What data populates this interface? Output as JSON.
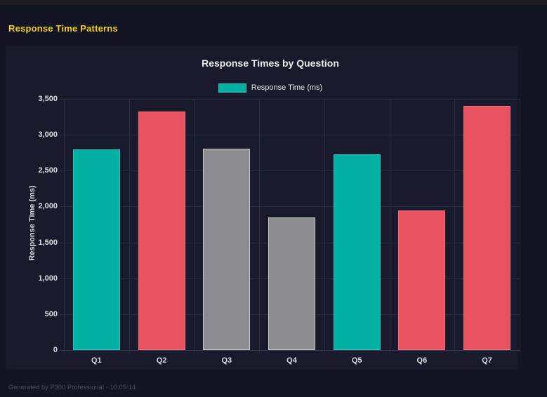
{
  "header": {
    "title": "Response Time Patterns"
  },
  "footer": {
    "text": "Generated by P300 Professional - 10:05:14"
  },
  "chart_data": {
    "type": "bar",
    "title": "Response Times by Question",
    "categories": [
      "Q1",
      "Q2",
      "Q3",
      "Q4",
      "Q5",
      "Q6",
      "Q7"
    ],
    "values": [
      2800,
      3320,
      2810,
      1850,
      2730,
      1950,
      3400
    ],
    "bar_colors": [
      "#02b1a3",
      "#e85261",
      "#8b8b90",
      "#8b8b90",
      "#02b1a3",
      "#e85261",
      "#e85261"
    ],
    "bar_border_colors": [
      "#2cc7b9",
      "#f0707d",
      "#c6c6cb",
      "#c6c6cb",
      "#2cc7b9",
      "#f0707d",
      "#f0707d"
    ],
    "xlabel": "",
    "ylabel": "Response Time (ms)",
    "ylim": [
      0,
      3500
    ],
    "y_tick_step": 500,
    "y_ticks": [
      "0",
      "500",
      "1,000",
      "1,500",
      "2,000",
      "2,500",
      "3,000",
      "3,500"
    ],
    "grid": true,
    "legend_position": "top",
    "legend": [
      {
        "label": "Response Time (ms)",
        "color": "#02b1a3",
        "border": "#2cc7b9"
      }
    ]
  },
  "colors": {
    "page_bg": "#131524",
    "card_bg": "#191b2c",
    "heading": "#f0d01c",
    "grid": "#2a2d42",
    "tick_text": "#dcdde2"
  }
}
